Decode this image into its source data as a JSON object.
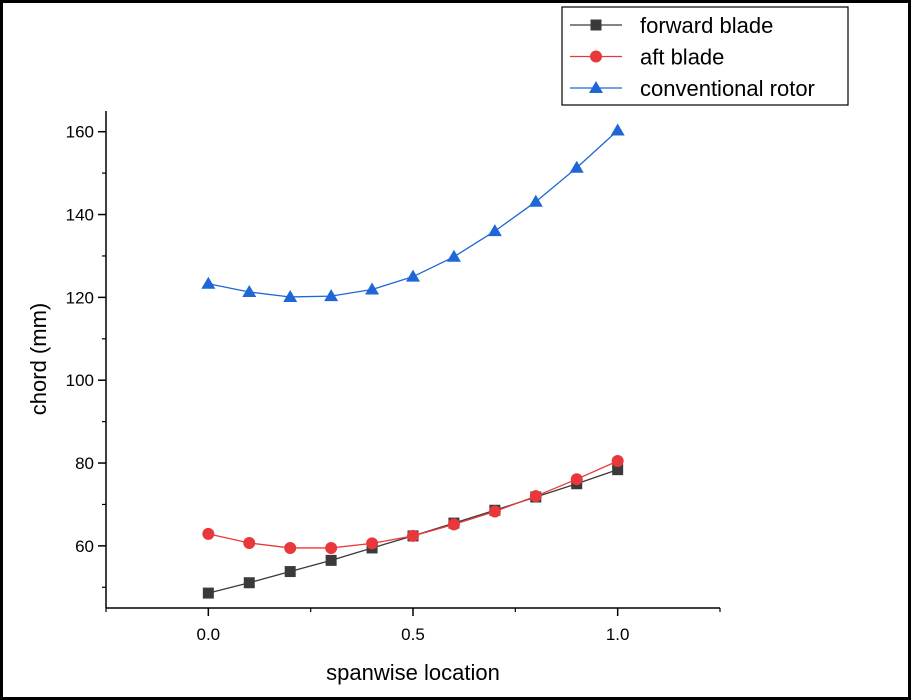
{
  "chart_data": {
    "type": "line",
    "title": "",
    "xlabel": "spanwise location",
    "ylabel": "chord (mm)",
    "xlim": [
      -0.25,
      1.25
    ],
    "ylim": [
      45,
      165
    ],
    "x_ticks": [
      "0.0",
      "0.5",
      "1.0"
    ],
    "x_tick_values": [
      0,
      0.5,
      1.0
    ],
    "y_ticks": [
      "60",
      "80",
      "100",
      "120",
      "140",
      "160"
    ],
    "y_tick_values": [
      60,
      80,
      100,
      120,
      140,
      160
    ],
    "grid": false,
    "legend_position": "top-right",
    "x": [
      0,
      0.1,
      0.2,
      0.3,
      0.4,
      0.5,
      0.6,
      0.7,
      0.8,
      0.9,
      1.0
    ],
    "series": [
      {
        "name": "forward blade",
        "color": "#3a3a3a",
        "marker": "square",
        "values": [
          48.6,
          51.1,
          53.8,
          56.5,
          59.5,
          62.4,
          65.5,
          68.6,
          71.8,
          75.0,
          78.4
        ]
      },
      {
        "name": "aft blade",
        "color": "#e8383b",
        "marker": "circle",
        "values": [
          62.9,
          60.7,
          59.5,
          59.5,
          60.6,
          62.4,
          65.2,
          68.3,
          72.0,
          76.1,
          80.5
        ]
      },
      {
        "name": "conventional rotor",
        "color": "#1f66d6",
        "marker": "triangle",
        "values": [
          123.3,
          121.3,
          120.1,
          120.3,
          121.9,
          125.0,
          129.8,
          136.0,
          143.1,
          151.3,
          160.3
        ]
      }
    ]
  }
}
